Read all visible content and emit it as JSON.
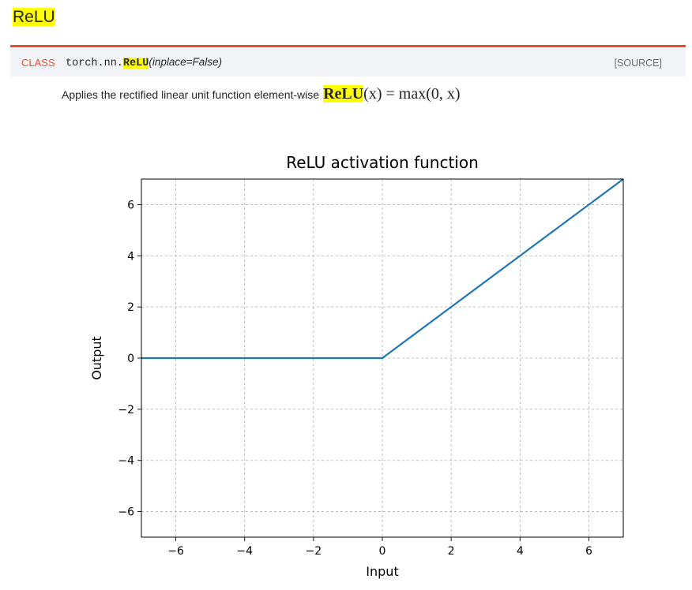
{
  "heading": "ReLU",
  "signature": {
    "class_label": "CLASS",
    "module": "torch.nn.",
    "name": "ReLU",
    "params": "(inplace=False)",
    "source_link": "[SOURCE]"
  },
  "description": {
    "text": "Applies the rectified linear unit function element-wise",
    "formula_fn": "ReLU",
    "formula_arg": "(x)",
    "formula_rest": " = max(0, x)"
  },
  "chart_data": {
    "type": "line",
    "title": "ReLU activation function",
    "xlabel": "Input",
    "ylabel": "Output",
    "xlim": [
      -7,
      7
    ],
    "ylim": [
      -7,
      7
    ],
    "xticks": [
      -6,
      -4,
      -2,
      0,
      2,
      4,
      6
    ],
    "yticks": [
      -6,
      -4,
      -2,
      0,
      2,
      4,
      6
    ],
    "grid": true,
    "series": [
      {
        "color": "#1f77b4",
        "x": [
          -7,
          0,
          7
        ],
        "y": [
          0,
          0,
          7
        ]
      }
    ]
  }
}
